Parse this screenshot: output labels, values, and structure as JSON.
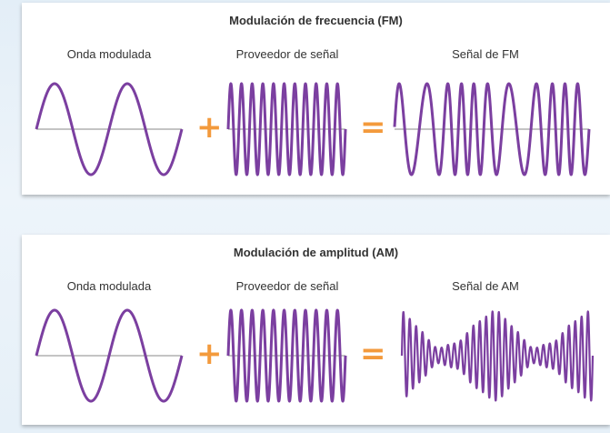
{
  "fm": {
    "title": "Modulación de frecuencia (FM)",
    "label_modulating": "Onda modulada",
    "label_carrier": "Proveedor de señal",
    "label_result": "Señal de FM",
    "plus": "+",
    "equals": "="
  },
  "am": {
    "title": "Modulación de amplitud (AM)",
    "label_modulating": "Onda modulada",
    "label_carrier": "Proveedor de señal",
    "label_result": "Señal de AM",
    "plus": "+",
    "equals": "="
  },
  "colors": {
    "wave": "#7b3fa0",
    "axis": "#8a8a8a",
    "operator": "#f39a3c"
  },
  "signals": {
    "modulating_cycles": 2,
    "carrier_cycles": 11,
    "fm_cycles": 11,
    "am_carrier_cycles": 30
  }
}
